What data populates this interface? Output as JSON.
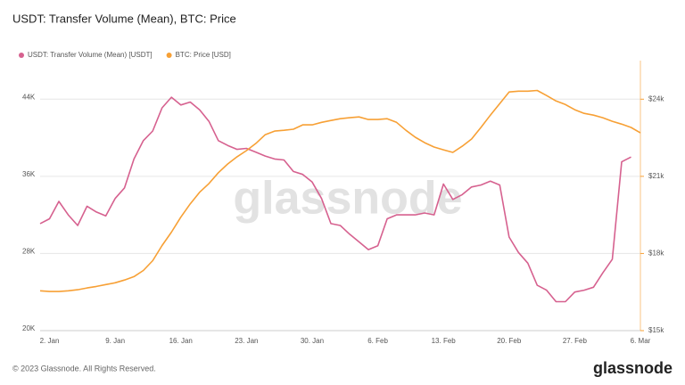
{
  "chart_data": {
    "type": "line",
    "title": "USDT: Transfer Volume (Mean), BTC: Price",
    "footer": "© 2023 Glassnode. All Rights Reserved.",
    "brand": "glassnode",
    "watermark": "glassnode",
    "x": [
      null,
      "2. Jan",
      null,
      null,
      null,
      null,
      null,
      null,
      "9. Jan",
      null,
      null,
      null,
      null,
      null,
      null,
      "16. Jan",
      null,
      null,
      null,
      null,
      null,
      null,
      "23. Jan",
      null,
      null,
      null,
      null,
      null,
      null,
      "30. Jan",
      null,
      null,
      null,
      null,
      null,
      null,
      "6. Feb",
      null,
      null,
      null,
      null,
      null,
      null,
      "13. Feb",
      null,
      null,
      null,
      null,
      null,
      null,
      "20. Feb",
      null,
      null,
      null,
      null,
      null,
      null,
      "27. Feb",
      null,
      null,
      null,
      null,
      null,
      null,
      "6. Mar"
    ],
    "series": [
      {
        "name": "USDT: Transfer Volume (Mean) [USDT]",
        "color": "#d6618f",
        "axis": "y",
        "values": [
          31100,
          31600,
          33400,
          32000,
          30900,
          32900,
          32300,
          31900,
          33700,
          34800,
          37800,
          39700,
          40700,
          43100,
          44200,
          43400,
          43700,
          42900,
          41700,
          39700,
          39200,
          38800,
          38900,
          38500,
          38100,
          37800,
          37700,
          36500,
          36200,
          35400,
          33700,
          31100,
          30900,
          30000,
          29200,
          28400,
          28800,
          31600,
          32000,
          32000,
          32000,
          32200,
          32000,
          35200,
          33600,
          34100,
          34900,
          35100,
          35500,
          35100,
          29700,
          28100,
          27000,
          24700,
          24200,
          23000,
          23000,
          24000,
          24200,
          24500,
          26000,
          27400,
          37500,
          38000,
          null
        ]
      },
      {
        "name": "BTC: Price [USD]",
        "color": "#f7a035",
        "axis": "y2",
        "values": [
          16550,
          16520,
          16520,
          16550,
          16590,
          16660,
          16720,
          16790,
          16860,
          16970,
          17100,
          17340,
          17720,
          18310,
          18830,
          19410,
          19930,
          20380,
          20720,
          21140,
          21480,
          21760,
          22000,
          22280,
          22620,
          22760,
          22790,
          22830,
          23000,
          23000,
          23100,
          23170,
          23240,
          23280,
          23310,
          23210,
          23210,
          23240,
          23100,
          22790,
          22520,
          22310,
          22140,
          22030,
          21930,
          22170,
          22450,
          22900,
          23380,
          23830,
          24280,
          24310,
          24310,
          24340,
          24140,
          23930,
          23790,
          23590,
          23450,
          23380,
          23280,
          23140,
          23030,
          22900,
          22690
        ]
      }
    ],
    "ylim": [
      20000,
      48000
    ],
    "yticks": [
      {
        "value": 20000,
        "label": "20K"
      },
      {
        "value": 28000,
        "label": "28K"
      },
      {
        "value": 36000,
        "label": "36K"
      },
      {
        "value": 44000,
        "label": "44K"
      }
    ],
    "y2lim": [
      15000,
      25500
    ],
    "y2ticks": [
      {
        "value": 15000,
        "label": "$15k"
      },
      {
        "value": 18000,
        "label": "$18k"
      },
      {
        "value": 21000,
        "label": "$21k"
      },
      {
        "value": 24000,
        "label": "$24k"
      }
    ],
    "grid": true
  }
}
